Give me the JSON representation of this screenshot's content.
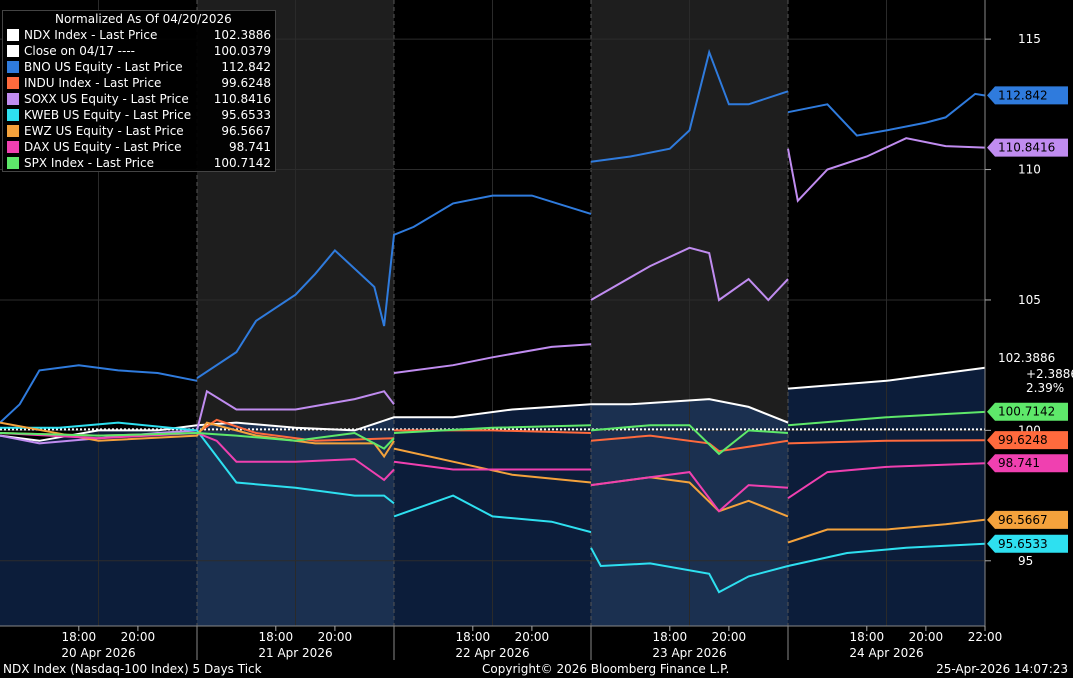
{
  "chart_data": {
    "type": "line",
    "title": "Normalized As Of 04/20/2026",
    "y_axis_ticks": [
      "95",
      "100",
      "105",
      "110",
      "115"
    ],
    "ylim": [
      92.5,
      116.5
    ],
    "x_time_labels": [
      "18:00",
      "20:00",
      "18:00",
      "20:00",
      "18:00",
      "20:00",
      "18:00",
      "20:00",
      "18:00",
      "20:00",
      "22:00"
    ],
    "x_day_labels": [
      "20 Apr 2026",
      "21 Apr 2026",
      "22 Apr 2026",
      "23 Apr 2026",
      "24 Apr 2026"
    ],
    "grid": true,
    "legend_position": "top-left",
    "series": [
      {
        "name": "NDX Index - Last Price",
        "last": "102.3886",
        "color": "#ffffff",
        "points": [
          [
            0,
            99.8
          ],
          [
            0.2,
            99.6
          ],
          [
            0.5,
            100.0
          ],
          [
            0.8,
            100.0
          ],
          [
            1.0,
            100.2
          ],
          [
            1.2,
            100.3
          ],
          [
            1.5,
            100.1
          ],
          [
            1.8,
            100.0
          ],
          [
            2.0,
            100.5
          ],
          [
            2.3,
            100.5
          ],
          [
            2.6,
            100.8
          ],
          [
            3.0,
            101.0
          ],
          [
            3.2,
            101.0
          ],
          [
            3.6,
            101.2
          ],
          [
            3.8,
            100.9
          ],
          [
            4.0,
            100.3
          ],
          [
            4.0,
            101.6
          ],
          [
            4.5,
            101.9
          ],
          [
            5.0,
            102.4
          ]
        ]
      },
      {
        "name": "Close on 04/17 ----",
        "last": "100.0379",
        "color": "#ffffff",
        "points": [
          [
            0,
            100.04
          ],
          [
            5.0,
            100.04
          ]
        ]
      },
      {
        "name": "BNO US Equity - Last Price",
        "last": "112.842",
        "color": "#2f7bdd",
        "points": [
          [
            0,
            100.3
          ],
          [
            0.1,
            101.0
          ],
          [
            0.2,
            102.3
          ],
          [
            0.4,
            102.5
          ],
          [
            0.6,
            102.3
          ],
          [
            0.8,
            102.2
          ],
          [
            1.0,
            101.9
          ],
          [
            1.0,
            102.0
          ],
          [
            1.2,
            103.0
          ],
          [
            1.3,
            104.2
          ],
          [
            1.5,
            105.2
          ],
          [
            1.6,
            106.0
          ],
          [
            1.7,
            106.9
          ],
          [
            1.9,
            105.5
          ],
          [
            1.95,
            104.0
          ],
          [
            2.0,
            107.5
          ],
          [
            2.1,
            107.8
          ],
          [
            2.3,
            108.7
          ],
          [
            2.5,
            109.0
          ],
          [
            2.7,
            109.0
          ],
          [
            3.0,
            108.3
          ],
          [
            3.0,
            110.3
          ],
          [
            3.2,
            110.5
          ],
          [
            3.4,
            110.8
          ],
          [
            3.5,
            111.5
          ],
          [
            3.6,
            114.5
          ],
          [
            3.7,
            112.5
          ],
          [
            3.8,
            112.5
          ],
          [
            4.0,
            113.0
          ],
          [
            4.0,
            112.2
          ],
          [
            4.2,
            112.5
          ],
          [
            4.35,
            111.3
          ],
          [
            4.5,
            111.5
          ],
          [
            4.7,
            111.8
          ],
          [
            4.8,
            112.0
          ],
          [
            4.95,
            112.9
          ],
          [
            5.0,
            112.84
          ]
        ]
      },
      {
        "name": "INDU Index - Last Price",
        "last": "99.6248",
        "color": "#ff6a3d",
        "points": [
          [
            0,
            99.9
          ],
          [
            0.5,
            99.8
          ],
          [
            1.0,
            99.9
          ],
          [
            1.1,
            100.4
          ],
          [
            1.3,
            99.9
          ],
          [
            1.6,
            99.6
          ],
          [
            2.0,
            99.7
          ],
          [
            2.0,
            100.0
          ],
          [
            2.5,
            100.0
          ],
          [
            3.0,
            99.9
          ],
          [
            3.0,
            99.6
          ],
          [
            3.3,
            99.8
          ],
          [
            3.6,
            99.5
          ],
          [
            3.65,
            99.2
          ],
          [
            4.0,
            99.6
          ],
          [
            4.0,
            99.5
          ],
          [
            4.5,
            99.6
          ],
          [
            5.0,
            99.62
          ]
        ]
      },
      {
        "name": "SOXX US Equity - Last Price",
        "last": "110.8416",
        "color": "#c08cf0",
        "points": [
          [
            0,
            99.8
          ],
          [
            0.2,
            99.5
          ],
          [
            0.5,
            99.7
          ],
          [
            0.8,
            99.9
          ],
          [
            1.0,
            100.0
          ],
          [
            1.05,
            101.5
          ],
          [
            1.2,
            100.8
          ],
          [
            1.5,
            100.8
          ],
          [
            1.8,
            101.2
          ],
          [
            1.95,
            101.5
          ],
          [
            2.0,
            101.0
          ],
          [
            2.0,
            102.2
          ],
          [
            2.3,
            102.5
          ],
          [
            2.5,
            102.8
          ],
          [
            2.8,
            103.2
          ],
          [
            3.0,
            103.3
          ],
          [
            3.0,
            105.0
          ],
          [
            3.3,
            106.3
          ],
          [
            3.5,
            107.0
          ],
          [
            3.6,
            106.8
          ],
          [
            3.65,
            105.0
          ],
          [
            3.8,
            105.8
          ],
          [
            3.9,
            105.0
          ],
          [
            4.0,
            105.8
          ],
          [
            4.0,
            110.8
          ],
          [
            4.05,
            108.8
          ],
          [
            4.2,
            110.0
          ],
          [
            4.4,
            110.5
          ],
          [
            4.6,
            111.2
          ],
          [
            4.8,
            110.9
          ],
          [
            5.0,
            110.84
          ]
        ]
      },
      {
        "name": "KWEB US Equity - Last Price",
        "last": "95.6533",
        "color": "#2ee0f0",
        "points": [
          [
            0,
            100.1
          ],
          [
            0.3,
            100.1
          ],
          [
            0.6,
            100.3
          ],
          [
            1.0,
            100.0
          ],
          [
            1.1,
            99.0
          ],
          [
            1.2,
            98.0
          ],
          [
            1.5,
            97.8
          ],
          [
            1.8,
            97.5
          ],
          [
            1.95,
            97.5
          ],
          [
            2.0,
            97.2
          ],
          [
            2.0,
            96.7
          ],
          [
            2.3,
            97.5
          ],
          [
            2.5,
            96.7
          ],
          [
            2.8,
            96.5
          ],
          [
            3.0,
            96.1
          ],
          [
            3.0,
            95.5
          ],
          [
            3.05,
            94.8
          ],
          [
            3.3,
            94.9
          ],
          [
            3.6,
            94.5
          ],
          [
            3.65,
            93.8
          ],
          [
            3.8,
            94.4
          ],
          [
            4.0,
            94.8
          ],
          [
            4.3,
            95.3
          ],
          [
            4.6,
            95.5
          ],
          [
            5.0,
            95.65
          ]
        ]
      },
      {
        "name": "EWZ US Equity - Last Price",
        "last": "96.5667",
        "color": "#f4a23c",
        "points": [
          [
            0,
            100.3
          ],
          [
            0.5,
            99.6
          ],
          [
            1.0,
            99.8
          ],
          [
            1.05,
            100.3
          ],
          [
            1.3,
            99.8
          ],
          [
            1.6,
            99.5
          ],
          [
            1.9,
            99.5
          ],
          [
            1.95,
            99.0
          ],
          [
            2.0,
            99.6
          ],
          [
            2.0,
            99.3
          ],
          [
            2.3,
            98.8
          ],
          [
            2.6,
            98.3
          ],
          [
            3.0,
            98.0
          ],
          [
            3.0,
            97.9
          ],
          [
            3.3,
            98.2
          ],
          [
            3.5,
            98.0
          ],
          [
            3.65,
            96.9
          ],
          [
            3.8,
            97.3
          ],
          [
            4.0,
            96.7
          ],
          [
            4.0,
            95.7
          ],
          [
            4.2,
            96.2
          ],
          [
            4.5,
            96.2
          ],
          [
            4.8,
            96.4
          ],
          [
            5.0,
            96.57
          ]
        ]
      },
      {
        "name": "DAX US Equity - Last Price",
        "last": "98.741",
        "color": "#f040b0",
        "points": [
          [
            0,
            99.9
          ],
          [
            0.5,
            99.7
          ],
          [
            1.0,
            99.9
          ],
          [
            1.1,
            99.6
          ],
          [
            1.2,
            98.8
          ],
          [
            1.5,
            98.8
          ],
          [
            1.8,
            98.9
          ],
          [
            1.95,
            98.1
          ],
          [
            2.0,
            98.5
          ],
          [
            2.0,
            98.8
          ],
          [
            2.3,
            98.5
          ],
          [
            2.6,
            98.5
          ],
          [
            3.0,
            98.5
          ],
          [
            3.0,
            97.9
          ],
          [
            3.3,
            98.2
          ],
          [
            3.5,
            98.4
          ],
          [
            3.65,
            96.9
          ],
          [
            3.8,
            97.9
          ],
          [
            4.0,
            97.8
          ],
          [
            4.0,
            97.4
          ],
          [
            4.2,
            98.4
          ],
          [
            4.5,
            98.6
          ],
          [
            5.0,
            98.74
          ]
        ]
      },
      {
        "name": "SPX Index - Last Price",
        "last": "100.7142",
        "color": "#5ee86a",
        "points": [
          [
            0,
            99.9
          ],
          [
            0.5,
            99.8
          ],
          [
            1.0,
            99.9
          ],
          [
            1.2,
            99.8
          ],
          [
            1.5,
            99.6
          ],
          [
            1.8,
            99.9
          ],
          [
            1.95,
            99.3
          ],
          [
            2.0,
            99.7
          ],
          [
            2.0,
            99.9
          ],
          [
            2.5,
            100.1
          ],
          [
            3.0,
            100.2
          ],
          [
            3.0,
            100.0
          ],
          [
            3.3,
            100.2
          ],
          [
            3.5,
            100.2
          ],
          [
            3.65,
            99.1
          ],
          [
            3.8,
            100.0
          ],
          [
            4.0,
            99.9
          ],
          [
            4.0,
            100.2
          ],
          [
            4.5,
            100.5
          ],
          [
            5.0,
            100.71
          ]
        ]
      }
    ]
  },
  "labels": {
    "ndx_change": "+2.3886",
    "ndx_pct": "2.39%"
  },
  "footer": {
    "left": "NDX Index (Nasdaq-100 Index) 5 Days Tick",
    "center": "Copyright© 2026 Bloomberg Finance L.P.",
    "right": "25-Apr-2026 14:07:23"
  }
}
